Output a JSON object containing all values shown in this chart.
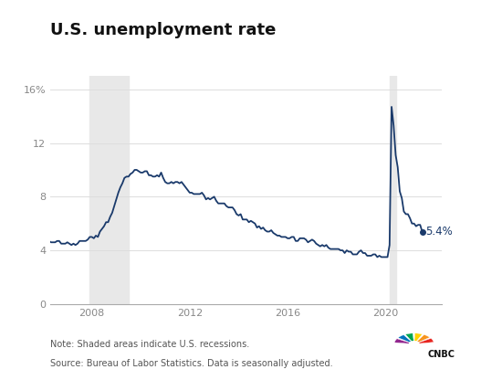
{
  "title": "U.S. unemployment rate",
  "title_fontsize": 13,
  "line_color": "#1a3a6b",
  "background_color": "#ffffff",
  "recession_color": "#e8e8e8",
  "recession1_start": 2007.917,
  "recession1_end": 2009.5,
  "recession2_start": 2020.167,
  "recession2_end": 2020.417,
  "ylim": [
    0,
    17
  ],
  "yticks": [
    0,
    4,
    8,
    12,
    16
  ],
  "ytick_labels": [
    "0",
    "4",
    "8",
    "12",
    "16%"
  ],
  "xlabel": "",
  "ylabel": "",
  "annotation_text": "5.4%",
  "note_text": "Note: Shaded areas indicate U.S. recessions.",
  "source_text": "Source: Bureau of Labor Statistics. Data is seasonally adjusted.",
  "xticks": [
    2008,
    2012,
    2016,
    2020
  ],
  "xlim_start": 2006.3,
  "xlim_end": 2022.3,
  "data": [
    [
      2006.0,
      4.7
    ],
    [
      2006.083,
      4.7
    ],
    [
      2006.167,
      4.8
    ],
    [
      2006.25,
      4.7
    ],
    [
      2006.333,
      4.6
    ],
    [
      2006.417,
      4.6
    ],
    [
      2006.5,
      4.6
    ],
    [
      2006.583,
      4.7
    ],
    [
      2006.667,
      4.7
    ],
    [
      2006.75,
      4.5
    ],
    [
      2006.833,
      4.5
    ],
    [
      2006.917,
      4.5
    ],
    [
      2007.0,
      4.6
    ],
    [
      2007.083,
      4.5
    ],
    [
      2007.167,
      4.4
    ],
    [
      2007.25,
      4.5
    ],
    [
      2007.333,
      4.4
    ],
    [
      2007.417,
      4.5
    ],
    [
      2007.5,
      4.7
    ],
    [
      2007.583,
      4.7
    ],
    [
      2007.667,
      4.7
    ],
    [
      2007.75,
      4.7
    ],
    [
      2007.833,
      4.8
    ],
    [
      2007.917,
      5.0
    ],
    [
      2008.0,
      5.0
    ],
    [
      2008.083,
      4.9
    ],
    [
      2008.167,
      5.1
    ],
    [
      2008.25,
      5.0
    ],
    [
      2008.333,
      5.4
    ],
    [
      2008.417,
      5.6
    ],
    [
      2008.5,
      5.8
    ],
    [
      2008.583,
      6.1
    ],
    [
      2008.667,
      6.1
    ],
    [
      2008.75,
      6.5
    ],
    [
      2008.833,
      6.8
    ],
    [
      2008.917,
      7.3
    ],
    [
      2009.0,
      7.8
    ],
    [
      2009.083,
      8.3
    ],
    [
      2009.167,
      8.7
    ],
    [
      2009.25,
      9.0
    ],
    [
      2009.333,
      9.4
    ],
    [
      2009.417,
      9.5
    ],
    [
      2009.5,
      9.5
    ],
    [
      2009.583,
      9.7
    ],
    [
      2009.667,
      9.8
    ],
    [
      2009.75,
      10.0
    ],
    [
      2009.833,
      10.0
    ],
    [
      2009.917,
      9.9
    ],
    [
      2010.0,
      9.8
    ],
    [
      2010.083,
      9.8
    ],
    [
      2010.167,
      9.9
    ],
    [
      2010.25,
      9.9
    ],
    [
      2010.333,
      9.6
    ],
    [
      2010.417,
      9.6
    ],
    [
      2010.5,
      9.5
    ],
    [
      2010.583,
      9.5
    ],
    [
      2010.667,
      9.6
    ],
    [
      2010.75,
      9.5
    ],
    [
      2010.833,
      9.8
    ],
    [
      2010.917,
      9.4
    ],
    [
      2011.0,
      9.1
    ],
    [
      2011.083,
      9.0
    ],
    [
      2011.167,
      9.0
    ],
    [
      2011.25,
      9.1
    ],
    [
      2011.333,
      9.0
    ],
    [
      2011.417,
      9.1
    ],
    [
      2011.5,
      9.1
    ],
    [
      2011.583,
      9.0
    ],
    [
      2011.667,
      9.1
    ],
    [
      2011.75,
      8.9
    ],
    [
      2011.833,
      8.7
    ],
    [
      2011.917,
      8.5
    ],
    [
      2012.0,
      8.3
    ],
    [
      2012.083,
      8.3
    ],
    [
      2012.167,
      8.2
    ],
    [
      2012.25,
      8.2
    ],
    [
      2012.333,
      8.2
    ],
    [
      2012.417,
      8.2
    ],
    [
      2012.5,
      8.3
    ],
    [
      2012.583,
      8.1
    ],
    [
      2012.667,
      7.8
    ],
    [
      2012.75,
      7.9
    ],
    [
      2012.833,
      7.8
    ],
    [
      2012.917,
      7.9
    ],
    [
      2013.0,
      8.0
    ],
    [
      2013.083,
      7.7
    ],
    [
      2013.167,
      7.5
    ],
    [
      2013.25,
      7.5
    ],
    [
      2013.333,
      7.5
    ],
    [
      2013.417,
      7.5
    ],
    [
      2013.5,
      7.3
    ],
    [
      2013.583,
      7.2
    ],
    [
      2013.667,
      7.2
    ],
    [
      2013.75,
      7.2
    ],
    [
      2013.833,
      7.0
    ],
    [
      2013.917,
      6.7
    ],
    [
      2014.0,
      6.6
    ],
    [
      2014.083,
      6.7
    ],
    [
      2014.167,
      6.3
    ],
    [
      2014.25,
      6.3
    ],
    [
      2014.333,
      6.3
    ],
    [
      2014.417,
      6.1
    ],
    [
      2014.5,
      6.2
    ],
    [
      2014.583,
      6.1
    ],
    [
      2014.667,
      6.0
    ],
    [
      2014.75,
      5.7
    ],
    [
      2014.833,
      5.8
    ],
    [
      2014.917,
      5.6
    ],
    [
      2015.0,
      5.7
    ],
    [
      2015.083,
      5.5
    ],
    [
      2015.167,
      5.4
    ],
    [
      2015.25,
      5.4
    ],
    [
      2015.333,
      5.5
    ],
    [
      2015.417,
      5.3
    ],
    [
      2015.5,
      5.2
    ],
    [
      2015.583,
      5.1
    ],
    [
      2015.667,
      5.1
    ],
    [
      2015.75,
      5.0
    ],
    [
      2015.833,
      5.0
    ],
    [
      2015.917,
      5.0
    ],
    [
      2016.0,
      4.9
    ],
    [
      2016.083,
      4.9
    ],
    [
      2016.167,
      5.0
    ],
    [
      2016.25,
      5.0
    ],
    [
      2016.333,
      4.7
    ],
    [
      2016.417,
      4.7
    ],
    [
      2016.5,
      4.9
    ],
    [
      2016.583,
      4.9
    ],
    [
      2016.667,
      4.9
    ],
    [
      2016.75,
      4.8
    ],
    [
      2016.833,
      4.6
    ],
    [
      2016.917,
      4.7
    ],
    [
      2017.0,
      4.8
    ],
    [
      2017.083,
      4.7
    ],
    [
      2017.167,
      4.5
    ],
    [
      2017.25,
      4.4
    ],
    [
      2017.333,
      4.3
    ],
    [
      2017.417,
      4.4
    ],
    [
      2017.5,
      4.3
    ],
    [
      2017.583,
      4.4
    ],
    [
      2017.667,
      4.2
    ],
    [
      2017.75,
      4.1
    ],
    [
      2017.833,
      4.1
    ],
    [
      2017.917,
      4.1
    ],
    [
      2018.0,
      4.1
    ],
    [
      2018.083,
      4.1
    ],
    [
      2018.167,
      4.0
    ],
    [
      2018.25,
      4.0
    ],
    [
      2018.333,
      3.8
    ],
    [
      2018.417,
      4.0
    ],
    [
      2018.5,
      3.9
    ],
    [
      2018.583,
      3.9
    ],
    [
      2018.667,
      3.7
    ],
    [
      2018.75,
      3.7
    ],
    [
      2018.833,
      3.7
    ],
    [
      2018.917,
      3.9
    ],
    [
      2019.0,
      4.0
    ],
    [
      2019.083,
      3.8
    ],
    [
      2019.167,
      3.8
    ],
    [
      2019.25,
      3.6
    ],
    [
      2019.333,
      3.6
    ],
    [
      2019.417,
      3.6
    ],
    [
      2019.5,
      3.7
    ],
    [
      2019.583,
      3.7
    ],
    [
      2019.667,
      3.5
    ],
    [
      2019.75,
      3.6
    ],
    [
      2019.833,
      3.5
    ],
    [
      2019.917,
      3.5
    ],
    [
      2020.0,
      3.5
    ],
    [
      2020.083,
      3.5
    ],
    [
      2020.167,
      4.4
    ],
    [
      2020.25,
      14.7
    ],
    [
      2020.333,
      13.3
    ],
    [
      2020.417,
      11.1
    ],
    [
      2020.5,
      10.2
    ],
    [
      2020.583,
      8.4
    ],
    [
      2020.667,
      7.9
    ],
    [
      2020.75,
      6.9
    ],
    [
      2020.833,
      6.7
    ],
    [
      2020.917,
      6.7
    ],
    [
      2021.0,
      6.4
    ],
    [
      2021.083,
      6.0
    ],
    [
      2021.167,
      6.0
    ],
    [
      2021.25,
      5.8
    ],
    [
      2021.333,
      5.9
    ],
    [
      2021.417,
      5.9
    ],
    [
      2021.5,
      5.4
    ]
  ]
}
